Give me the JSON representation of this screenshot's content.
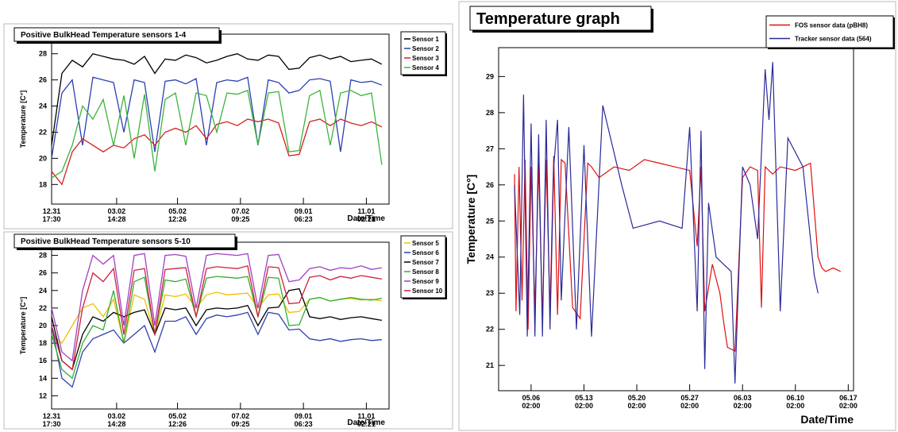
{
  "chart_data": [
    {
      "type": "line",
      "title": "Positive BulkHead Temperature sensors 1-4",
      "y_label": "Temperature [C°]",
      "x_label": "Date/Time",
      "x": [
        0,
        10,
        20,
        30,
        40,
        50,
        60,
        70,
        80,
        90,
        100,
        110,
        120,
        130,
        140,
        150,
        160,
        170,
        180,
        190,
        200,
        210,
        220,
        230,
        240,
        250,
        260,
        270,
        280,
        290,
        300,
        310,
        320
      ],
      "xlim": [
        0,
        327
      ],
      "xticks": [
        {
          "value": 0,
          "label": "12.31\n17:30"
        },
        {
          "value": 63,
          "label": "03.02\n14:28"
        },
        {
          "value": 122,
          "label": "05.02\n12:26"
        },
        {
          "value": 183,
          "label": "07.02\n09:25"
        },
        {
          "value": 244,
          "label": "09.01\n06:23"
        },
        {
          "value": 305,
          "label": "11.01\n02:21"
        }
      ],
      "ylim": [
        16.5,
        29.5
      ],
      "yticks": [
        18,
        20,
        22,
        24,
        26,
        28
      ],
      "grid": false,
      "legend": "upper right",
      "series": [
        {
          "name": "Sensor 1",
          "color": "#000000",
          "values": [
            21,
            26.5,
            27.5,
            27,
            28,
            27.8,
            27.6,
            27.5,
            27.2,
            27.8,
            26.5,
            27.6,
            27.5,
            27.9,
            27.7,
            27.3,
            27.5,
            27.8,
            28,
            27.6,
            27.5,
            27.9,
            27.8,
            26.8,
            26.9,
            27.7,
            27.9,
            27.6,
            27.8,
            27.4,
            27.5,
            27.6,
            27.2
          ]
        },
        {
          "name": "Sensor 2",
          "color": "#2b3fb0",
          "values": [
            20,
            25,
            26,
            21,
            26.2,
            26,
            25.8,
            22,
            26,
            25.8,
            20.5,
            25.9,
            26,
            25.7,
            26.1,
            21,
            25.8,
            26,
            25.9,
            26.2,
            21,
            26,
            25.8,
            25,
            25.2,
            26,
            26.1,
            25.9,
            20.5,
            26,
            25.8,
            25.9,
            25.6
          ]
        },
        {
          "name": "Sensor 3",
          "color": "#d42020",
          "values": [
            19,
            18,
            20.5,
            21.5,
            21,
            20.5,
            21,
            20.8,
            21.5,
            21.8,
            21,
            22,
            22.3,
            22,
            22.5,
            21.5,
            22.6,
            22.8,
            22.5,
            23,
            22.8,
            23,
            22.7,
            20.2,
            20.3,
            22.8,
            23,
            22.5,
            23,
            22.7,
            22.5,
            22.8,
            22.4
          ]
        },
        {
          "name": "Sensor 4",
          "color": "#3cb43c",
          "values": [
            18.5,
            19,
            21,
            24,
            23,
            24.5,
            21,
            24.8,
            20,
            24.9,
            19,
            24.5,
            25,
            21,
            25,
            24.8,
            22,
            25,
            24.9,
            25.2,
            21,
            25,
            25.1,
            20.5,
            20.6,
            24.8,
            25.2,
            21,
            25,
            25.2,
            24.8,
            25,
            19.5
          ]
        }
      ]
    },
    {
      "type": "line",
      "title": "Positive BulkHead Temperature sensors 5-10",
      "y_label": "Temperature [C°]",
      "x_label": "Date/Time",
      "x": [
        0,
        10,
        20,
        30,
        40,
        50,
        60,
        70,
        80,
        90,
        100,
        110,
        120,
        130,
        140,
        150,
        160,
        170,
        180,
        190,
        200,
        210,
        220,
        230,
        240,
        250,
        260,
        270,
        280,
        290,
        300,
        310,
        320
      ],
      "xlim": [
        0,
        327
      ],
      "xticks": [
        {
          "value": 0,
          "label": "12.31\n17:30"
        },
        {
          "value": 63,
          "label": "03.02\n14:28"
        },
        {
          "value": 122,
          "label": "05.02\n12:26"
        },
        {
          "value": 183,
          "label": "07.02\n09:25"
        },
        {
          "value": 244,
          "label": "09.01\n06:23"
        },
        {
          "value": 305,
          "label": "11.01\n02:21"
        }
      ],
      "ylim": [
        10.5,
        29.5
      ],
      "yticks": [
        12,
        14,
        16,
        18,
        20,
        22,
        24,
        26,
        28
      ],
      "grid": false,
      "legend": "upper right",
      "series": [
        {
          "name": "Sensor 5",
          "color": "#f0c000",
          "values": [
            19,
            18,
            20,
            22,
            22.5,
            21,
            23,
            18,
            23.5,
            23,
            19,
            23.5,
            23.3,
            23.6,
            22,
            23.5,
            23.8,
            23.5,
            23.6,
            23.7,
            22,
            23.5,
            23.6,
            21.5,
            21.6,
            23,
            23.2,
            22.8,
            23,
            23.1,
            22.9,
            23,
            22.8
          ]
        },
        {
          "name": "Sensor 6",
          "color": "#3040b0",
          "values": [
            20,
            14,
            13,
            17,
            18.5,
            19,
            19.5,
            18,
            19,
            20,
            17,
            20.5,
            20.5,
            21,
            19,
            20.8,
            21.2,
            21,
            21.2,
            21.5,
            19,
            21.5,
            21.3,
            19.5,
            19.6,
            18.5,
            18.3,
            18.5,
            18.2,
            18.4,
            18.5,
            18.3,
            18.4
          ]
        },
        {
          "name": "Sensor 7",
          "color": "#000000",
          "values": [
            21,
            16,
            15,
            19,
            21,
            20.5,
            21.5,
            21,
            21.5,
            21.8,
            19,
            22,
            21.8,
            22,
            20,
            21.8,
            22,
            21.9,
            22,
            22.3,
            20,
            22,
            22.1,
            24,
            24.2,
            21,
            20.8,
            21,
            20.7,
            20.9,
            21,
            20.8,
            20.6
          ]
        },
        {
          "name": "Sensor 8",
          "color": "#30b030",
          "values": [
            19,
            15,
            14,
            18,
            20,
            19.5,
            24,
            18,
            25,
            25.5,
            19,
            25.2,
            25,
            25.3,
            21,
            25.4,
            25.6,
            25.5,
            25.4,
            25.6,
            21,
            25.5,
            25.4,
            20,
            20.1,
            23,
            23.2,
            22.8,
            23,
            23.2,
            23,
            22.9,
            23.1
          ]
        },
        {
          "name": "Sensor 9",
          "color": "#a040c0",
          "values": [
            22,
            17,
            16,
            24,
            28,
            27,
            28,
            20,
            28,
            28.2,
            20,
            28,
            28.1,
            27.9,
            22,
            28,
            28.2,
            28.1,
            28,
            28.2,
            22,
            28,
            28.1,
            25,
            25.2,
            26.5,
            26.7,
            26.3,
            26.6,
            26.5,
            26.8,
            26.4,
            26.6
          ]
        },
        {
          "name": "Sensor 10",
          "color": "#d02040",
          "values": [
            20,
            16,
            15,
            22,
            26,
            25,
            26.5,
            19,
            26.3,
            26.5,
            19,
            26.4,
            26.5,
            26.6,
            21,
            26.5,
            26.7,
            26.6,
            26.5,
            26.8,
            21,
            26.7,
            26.6,
            22.5,
            22.6,
            25.5,
            25.7,
            25.2,
            25.6,
            25.4,
            25.7,
            25.5,
            25.3
          ]
        }
      ]
    },
    {
      "type": "line",
      "title": "Temperature graph",
      "y_label": "Temperature [C°]",
      "x_label": "Date/Time",
      "xlim": [
        -4.3,
        42.7
      ],
      "xticks": [
        {
          "value": 0,
          "label": "05.06\n02:00"
        },
        {
          "value": 7,
          "label": "05.13\n02:00"
        },
        {
          "value": 14,
          "label": "05.20\n02:00"
        },
        {
          "value": 21,
          "label": "05.27\n02:00"
        },
        {
          "value": 28,
          "label": "06.03\n02:00"
        },
        {
          "value": 35,
          "label": "06.10\n02:00"
        },
        {
          "value": 42,
          "label": "06.17\n02:00"
        }
      ],
      "ylim": [
        20.3,
        29.8
      ],
      "yticks": [
        21,
        22,
        23,
        24,
        25,
        26,
        27,
        28,
        29
      ],
      "grid": false,
      "legend": "upper right",
      "series": [
        {
          "name": "FOS sensor data (pBH8)",
          "color": "#e01010",
          "x": [
            -2.2,
            -2,
            -1.6,
            -1.2,
            -0.8,
            -0.4,
            0,
            0.5,
            1,
            1.5,
            2,
            2.5,
            3,
            3.5,
            4,
            4.5,
            5.5,
            6.5,
            7.5,
            8,
            9,
            11,
            13,
            15,
            17,
            19,
            21,
            22,
            22.5,
            23,
            24,
            25,
            25.5,
            26,
            27,
            28,
            29,
            30,
            30.5,
            31,
            32,
            33,
            35,
            37,
            38,
            38.5,
            39,
            40,
            41
          ],
          "values": [
            26.3,
            22.5,
            26.5,
            22.8,
            26.7,
            22,
            26.5,
            22.5,
            26.6,
            22.3,
            26.7,
            22.5,
            26.8,
            22.4,
            26.7,
            26.6,
            22.6,
            22.3,
            26.6,
            26.5,
            26.2,
            26.5,
            26.4,
            26.7,
            26.6,
            26.5,
            26.4,
            24.3,
            26.5,
            22.5,
            23.8,
            23,
            22.2,
            21.5,
            21.4,
            26.2,
            26.5,
            26.4,
            22.6,
            26.5,
            26.3,
            26.5,
            26.4,
            26.6,
            24,
            23.7,
            23.6,
            23.7,
            23.6
          ]
        },
        {
          "name": "Tracker sensor data (564)",
          "color": "#2a2a9a",
          "x": [
            -2.2,
            -1.5,
            -1,
            -0.5,
            0,
            0.5,
            1,
            1.5,
            2,
            2.5,
            3,
            3.5,
            4,
            5,
            6,
            7,
            8,
            9.5,
            12,
            13.5,
            17,
            20,
            21,
            22,
            22.5,
            23,
            23.5,
            24.5,
            26.5,
            27,
            28,
            29,
            30,
            31,
            31.5,
            32,
            33,
            34,
            36,
            37.5,
            38
          ],
          "values": [
            26,
            22.4,
            28.5,
            21.8,
            27.7,
            21.8,
            27.4,
            21.8,
            27.8,
            22,
            26.5,
            27.8,
            22.8,
            27.6,
            22,
            27.1,
            21.8,
            28.2,
            26,
            24.8,
            25,
            24.8,
            27.6,
            22.5,
            27.5,
            20.9,
            25.5,
            24,
            23.6,
            20.5,
            26.5,
            26,
            24.5,
            29.2,
            27.8,
            29.4,
            22.5,
            27.3,
            26.5,
            23.5,
            23
          ]
        }
      ]
    }
  ]
}
